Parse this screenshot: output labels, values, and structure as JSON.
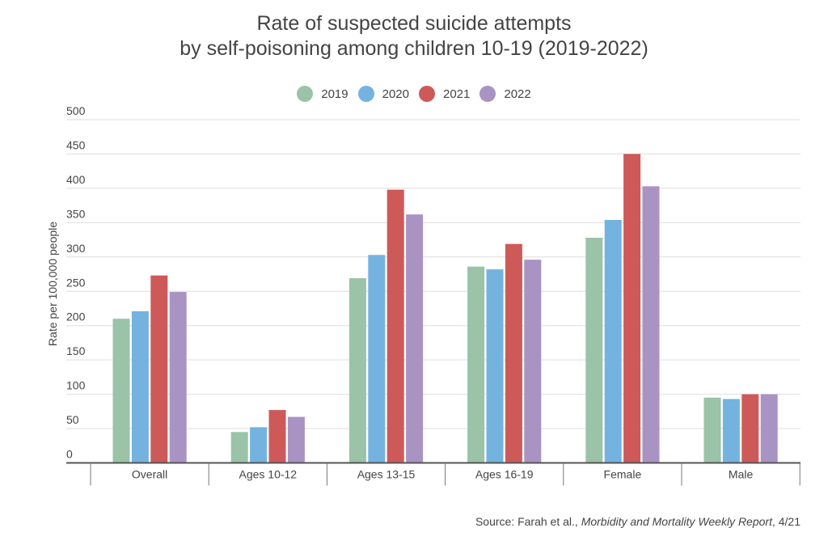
{
  "chart_data": {
    "type": "bar",
    "title_line1": "Rate of suspected suicide attempts",
    "title_line2": "by self-poisoning among children 10-19 (2019-2022)",
    "xlabel": "",
    "ylabel": "Rate per 100,000 people",
    "ylim": [
      0,
      500
    ],
    "yticks": [
      0,
      50,
      100,
      150,
      200,
      250,
      300,
      350,
      400,
      450,
      500
    ],
    "grid": true,
    "legend_position": "top-center",
    "categories": [
      "Overall",
      "Ages 10-12",
      "Ages 13-15",
      "Ages 16-19",
      "Female",
      "Male"
    ],
    "series": [
      {
        "name": "2019",
        "color": "#9AC3A8",
        "values": [
          210,
          45,
          269,
          286,
          328,
          95
        ]
      },
      {
        "name": "2020",
        "color": "#74B3E0",
        "values": [
          221,
          52,
          303,
          282,
          354,
          93
        ]
      },
      {
        "name": "2021",
        "color": "#CD5A59",
        "values": [
          273,
          77,
          398,
          319,
          450,
          100
        ]
      },
      {
        "name": "2022",
        "color": "#A993C3",
        "values": [
          249,
          67,
          362,
          296,
          403,
          100
        ]
      }
    ],
    "source_prefix": "Source: Farah et al., ",
    "source_italic": "Morbidity and Mortality Weekly Report",
    "source_suffix": ", 4/21"
  }
}
